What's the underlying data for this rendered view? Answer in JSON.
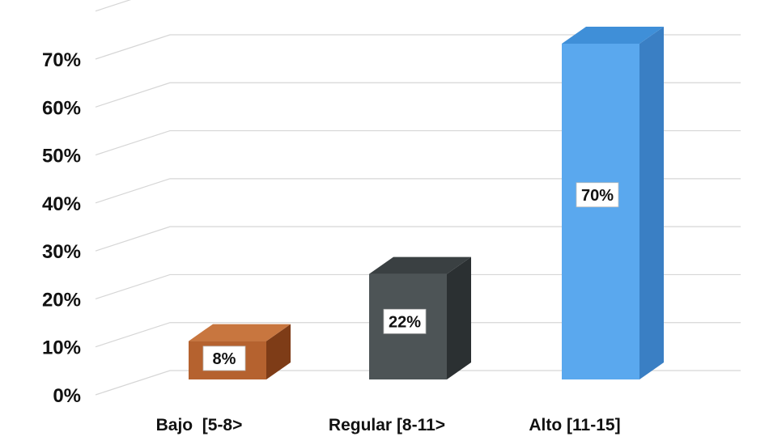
{
  "chart_data": {
    "type": "bar",
    "categories": [
      "Bajo  [5-8>",
      "Regular [8-11>",
      "Alto [11-15]"
    ],
    "values": [
      8,
      22,
      70
    ],
    "data_labels": [
      "8%",
      "22%",
      "70%"
    ],
    "yticks": [
      "0%",
      "10%",
      "20%",
      "30%",
      "40%",
      "50%",
      "60%",
      "70%"
    ],
    "ylim": [
      0,
      80
    ],
    "grid": true,
    "three_d": true,
    "colors": {
      "front": [
        "#b5622f",
        "#4d5456",
        "#5aa8ee"
      ],
      "side": [
        "#7e3c17",
        "#2b3032",
        "#3a7fc4"
      ],
      "top": [
        "#c8763f",
        "#3a4042",
        "#3f8fd8"
      ]
    }
  }
}
